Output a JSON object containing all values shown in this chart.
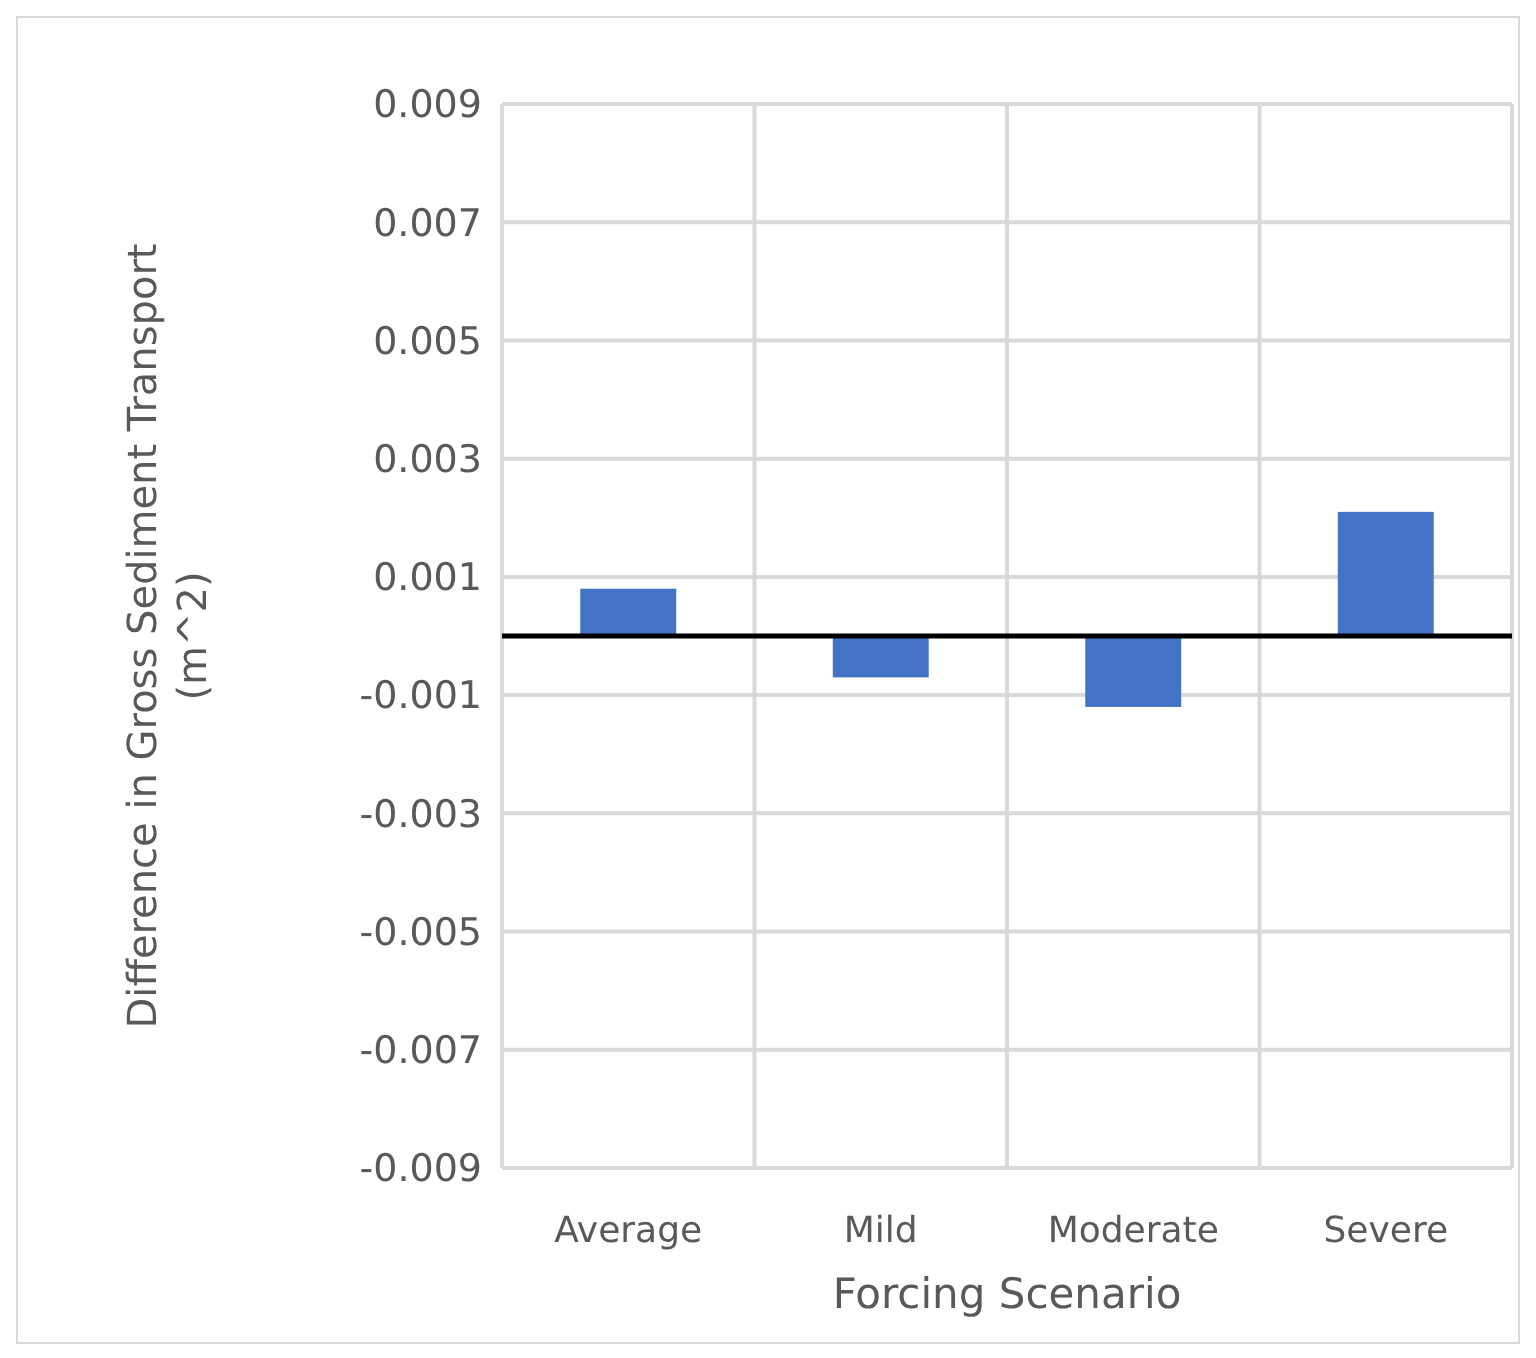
{
  "chart_data": {
    "type": "bar",
    "xlabel": "Forcing Scenario",
    "ylabel": "Difference in Gross Sediment Transport (m^2)",
    "categories": [
      "Average",
      "Mild",
      "Moderate",
      "Severe"
    ],
    "values": [
      0.0008,
      -0.0007,
      -0.0012,
      0.0021
    ],
    "color": "#4472c4",
    "ylim": [
      -0.009,
      0.009
    ],
    "yticks": [
      -0.009,
      -0.007,
      -0.005,
      -0.003,
      -0.001,
      0.001,
      0.003,
      0.005,
      0.007,
      0.009
    ],
    "grid": true
  }
}
